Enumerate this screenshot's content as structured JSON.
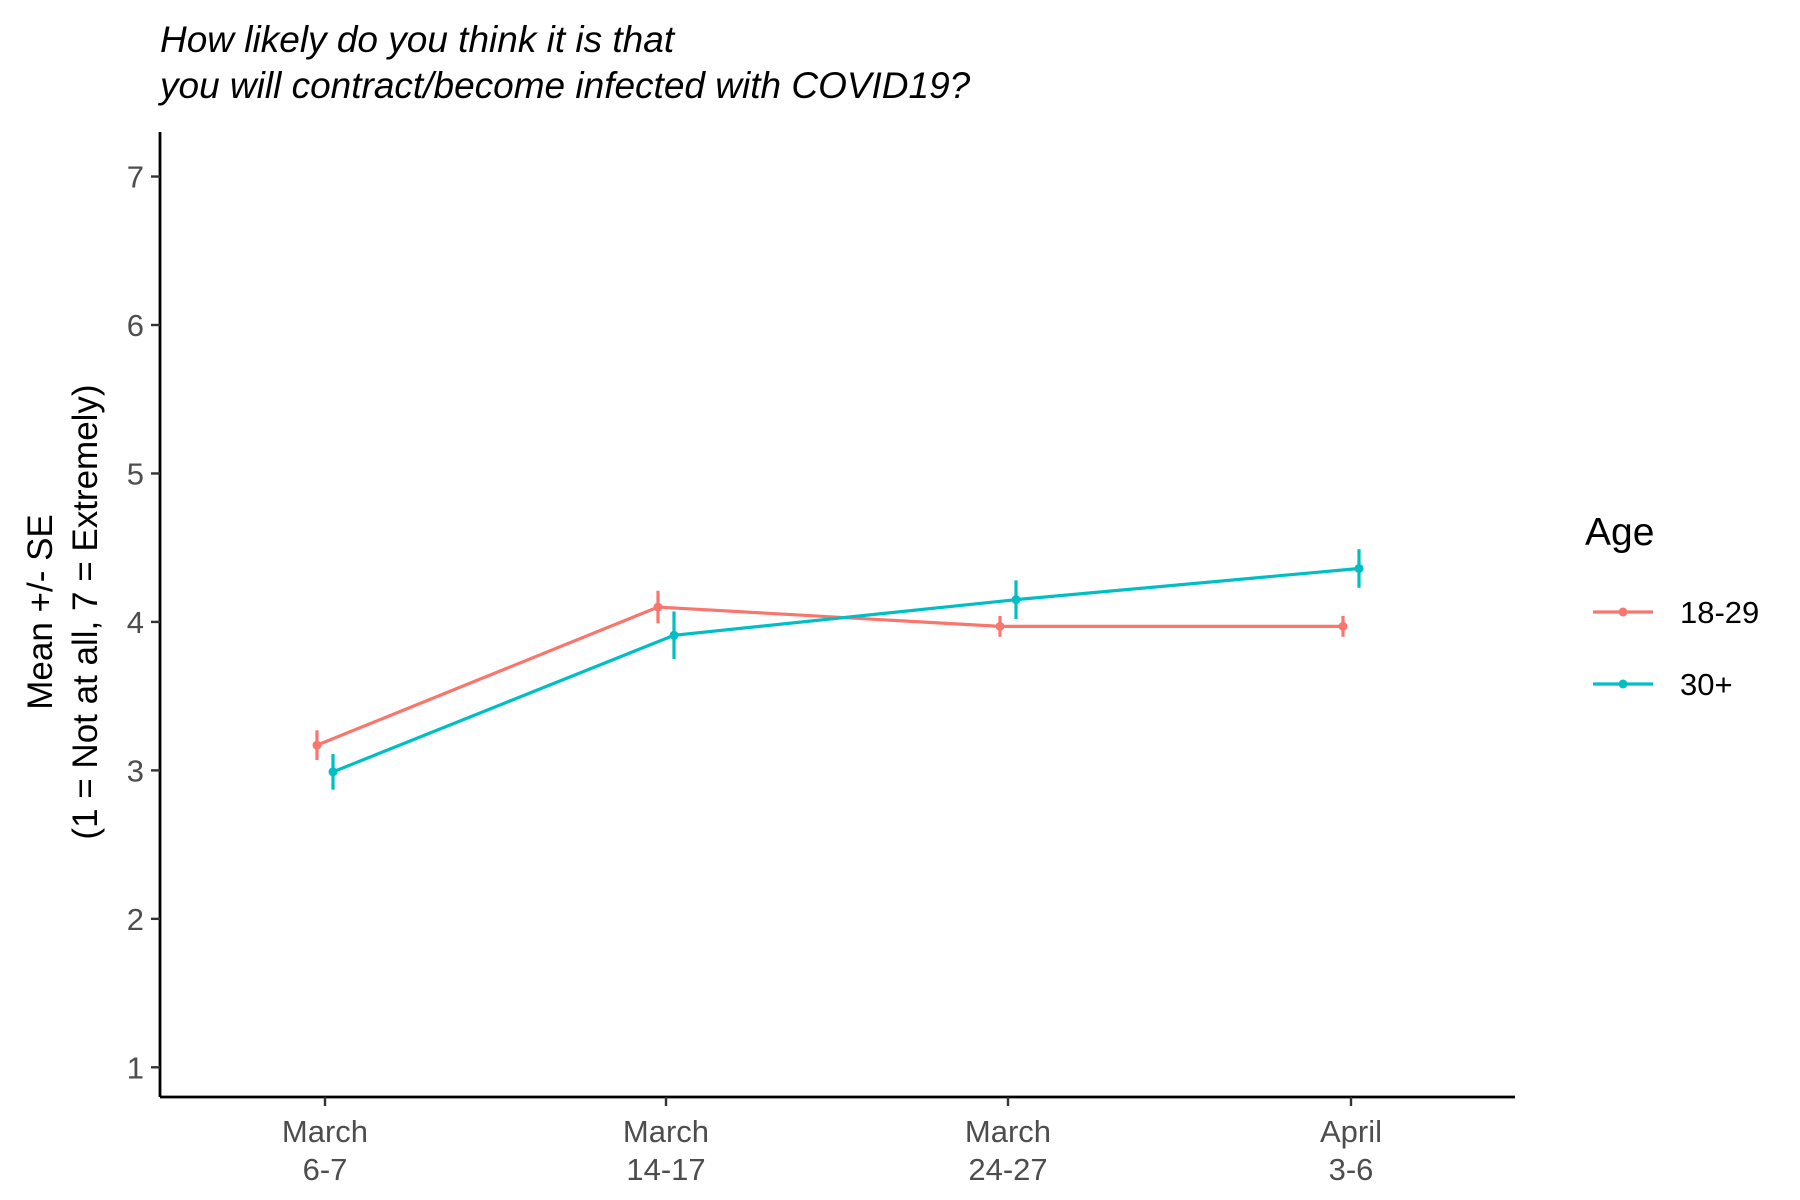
{
  "chart_data": {
    "type": "line",
    "title_lines": [
      "How likely do you think it is that",
      "you will contract/become infected with COVID19?"
    ],
    "xlabel": "",
    "ylabel_lines": [
      "Mean +/- SE",
      "(1 = Not at all, 7 = Extremely)"
    ],
    "ylim": [
      0.8,
      7.3
    ],
    "yticks": [
      "1",
      "2",
      "3",
      "4",
      "5",
      "6",
      "7"
    ],
    "categories": [
      [
        "March",
        "6-7"
      ],
      [
        "March",
        "14-17"
      ],
      [
        "March",
        "24-27"
      ],
      [
        "April",
        "3-6"
      ]
    ],
    "grid": false,
    "legend": {
      "title": "Age",
      "position": "right"
    },
    "series": [
      {
        "name": "18-29",
        "color": "#F8766D",
        "values": [
          3.17,
          4.1,
          3.97,
          3.97
        ],
        "se": [
          0.1,
          0.11,
          0.07,
          0.07
        ]
      },
      {
        "name": "30+",
        "color": "#00BFC4",
        "values": [
          2.99,
          3.91,
          4.15,
          4.36
        ],
        "se": [
          0.12,
          0.16,
          0.13,
          0.13
        ]
      }
    ]
  }
}
